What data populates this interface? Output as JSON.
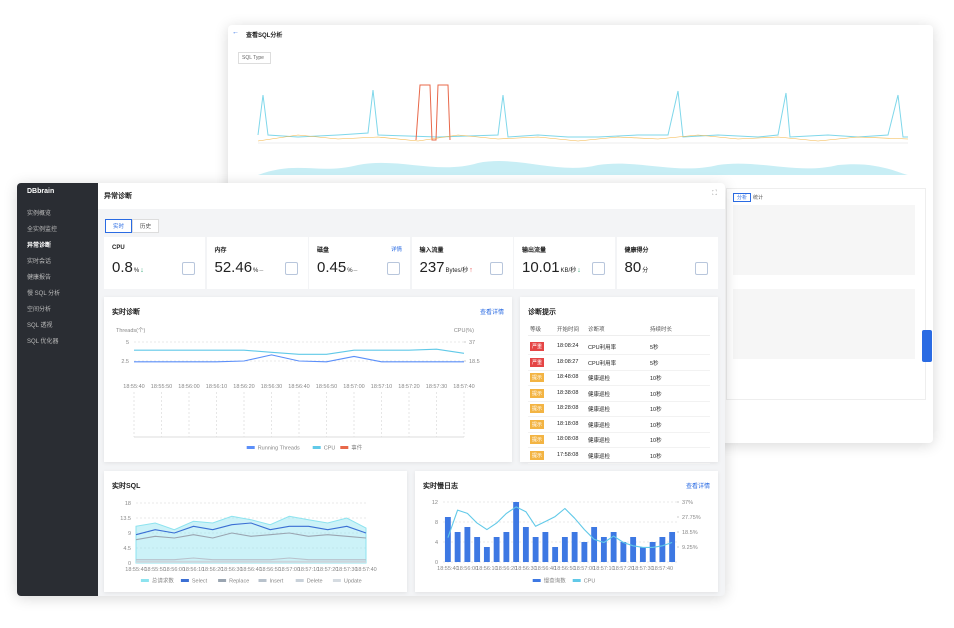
{
  "back_window": {
    "title": "查看SQL分析",
    "dropdown": "SQL Type",
    "tabs": [
      "分析",
      "统计"
    ]
  },
  "sidebar": {
    "brand": "DBbrain",
    "menu": [
      "实例概览",
      "全实例监控",
      "异常诊断",
      "实时会话",
      "健康报告",
      "慢 SQL 分析",
      "空间分析",
      "SQL 透视",
      "SQL 优化器"
    ],
    "active": 2
  },
  "page": {
    "title": "异常诊断",
    "tabs": [
      "实时",
      "历史"
    ],
    "active_tab": 0
  },
  "metrics": [
    {
      "label": "CPU",
      "value": 0.8,
      "unit": "%",
      "trend": "↓",
      "trend_color": "#2ba471"
    },
    {
      "label": "内存",
      "value": 52.46,
      "unit": "%",
      "trend": "–",
      "trend_color": "#888888"
    },
    {
      "label": "磁盘",
      "value": 0.45,
      "unit": "%",
      "trend": "–",
      "trend_color": "#888888",
      "link": "详情"
    },
    {
      "label": "输入流量",
      "value": 237,
      "unit": "Bytes/秒",
      "trend": "↑",
      "trend_color": "#e54545"
    },
    {
      "label": "输出流量",
      "value": 10.01,
      "unit": "KB/秒",
      "trend": "↓",
      "trend_color": "#2ba471"
    },
    {
      "label": "健康得分",
      "value": 80,
      "unit": "分"
    }
  ],
  "diagnosis_chart": {
    "type": "line",
    "title": "实时诊断",
    "link": "查看详情",
    "ylabel": "Threads(个)",
    "y2label": "CPU(%)",
    "categories": [
      "18:55:40",
      "18:55:50",
      "18:56:00",
      "18:56:10",
      "18:56:20",
      "18:56:30",
      "18:56:40",
      "18:56:50",
      "18:57:00",
      "18:57:10",
      "18:57:20",
      "18:57:30",
      "18:57:40"
    ],
    "ylim": [
      0,
      5
    ],
    "yticks": [
      2.5,
      5
    ],
    "y2lim": [
      0,
      37
    ],
    "y2ticks": [
      18.5,
      37
    ],
    "series": [
      {
        "name": "Running Threads",
        "type": "line",
        "color": "#5b8ff9",
        "values": [
          2.4,
          2.4,
          2.4,
          2.4,
          2.5,
          3.3,
          2.5,
          2.4,
          3.1,
          2.4,
          2.4,
          2.4,
          2.4
        ]
      },
      {
        "name": "CPU",
        "type": "line",
        "color": "#61c9e8",
        "axis": "y2",
        "values": [
          29,
          29,
          29,
          29,
          29,
          27,
          25,
          25,
          29,
          29,
          29,
          30,
          26
        ]
      }
    ],
    "legend_extra": [
      {
        "name": "事件",
        "color": "#e8684a"
      }
    ]
  },
  "tips": {
    "title": "诊断提示",
    "columns": [
      "等级",
      "开始时间",
      "诊断项",
      "持续时长"
    ],
    "rows": [
      {
        "level": "严重",
        "color": "#e54545",
        "start": "18:08:24",
        "item": "CPU利用率",
        "duration": "5秒"
      },
      {
        "level": "严重",
        "color": "#e54545",
        "start": "18:08:27",
        "item": "CPU利用率",
        "duration": "5秒"
      },
      {
        "level": "提示",
        "color": "#f3b443",
        "start": "18:48:08",
        "item": "健康巡检",
        "duration": "10秒"
      },
      {
        "level": "提示",
        "color": "#f3b443",
        "start": "18:38:08",
        "item": "健康巡检",
        "duration": "10秒"
      },
      {
        "level": "提示",
        "color": "#f3b443",
        "start": "18:28:08",
        "item": "健康巡检",
        "duration": "10秒"
      },
      {
        "level": "提示",
        "color": "#f3b443",
        "start": "18:18:08",
        "item": "健康巡检",
        "duration": "10秒"
      },
      {
        "level": "提示",
        "color": "#f3b443",
        "start": "18:08:08",
        "item": "健康巡检",
        "duration": "10秒"
      },
      {
        "level": "提示",
        "color": "#f3b443",
        "start": "17:58:08",
        "item": "健康巡检",
        "duration": "10秒"
      }
    ]
  },
  "sql_chart": {
    "type": "line",
    "title": "实时SQL",
    "categories": [
      "18:55:40",
      "18:55:50",
      "18:56:00",
      "18:56:10",
      "18:56:20",
      "18:56:30",
      "18:56:40",
      "18:56:50",
      "18:57:00",
      "18:57:10",
      "18:57:20",
      "18:57:30",
      "18:57:40"
    ],
    "ylim": [
      0,
      18
    ],
    "yticks": [
      0,
      4.5,
      9,
      13.5,
      18
    ],
    "series": [
      {
        "name": "总请求数",
        "type": "area",
        "color": "#8de3ef",
        "values": [
          11,
          12,
          10,
          12.5,
          12,
          14,
          13,
          11.5,
          14,
          13,
          12,
          13.5,
          10.5
        ]
      },
      {
        "name": "Select",
        "type": "line",
        "color": "#3b6fd4",
        "values": [
          8.5,
          10,
          9,
          11,
          10,
          11.5,
          12,
          10,
          11,
          11,
          10,
          11,
          9
        ]
      },
      {
        "name": "Replace",
        "type": "line",
        "color": "#9aa5b1",
        "values": [
          7,
          8,
          7.5,
          8.5,
          7.5,
          9,
          8,
          8.5,
          9,
          8,
          8.5,
          8,
          7.5
        ]
      },
      {
        "name": "Insert",
        "type": "line",
        "color": "#b8c2cc",
        "values": [
          1,
          1,
          1,
          1.5,
          1,
          1,
          1,
          1,
          1.5,
          1,
          1,
          1,
          1
        ]
      },
      {
        "name": "Delete",
        "type": "line",
        "color": "#c9d1d9",
        "values": [
          0.5,
          0.5,
          0.5,
          0.5,
          0.5,
          0.5,
          0.5,
          0.5,
          0.5,
          0.5,
          0.5,
          0.5,
          0.5
        ]
      },
      {
        "name": "Update",
        "type": "line",
        "color": "#d5dbe1",
        "values": [
          0.2,
          0.2,
          0.2,
          0.2,
          0.2,
          0.2,
          0.2,
          0.2,
          0.2,
          0.2,
          0.2,
          0.2,
          0.2
        ]
      }
    ]
  },
  "slow_chart": {
    "type": "bar",
    "title": "实时慢日志",
    "link": "查看详情",
    "categories": [
      "18:55:40",
      null,
      "18:56:00",
      null,
      "18:56:10",
      null,
      "18:56:20",
      null,
      "18:56:30",
      null,
      "18:56:40",
      null,
      "18:56:50",
      null,
      "18:57:00",
      null,
      "18:57:10",
      null,
      "18:57:20",
      null,
      "18:57:30",
      null,
      "18:57:40",
      null
    ],
    "ylim": [
      0,
      12
    ],
    "yticks": [
      0,
      4,
      8,
      12
    ],
    "y2lim": [
      0,
      37
    ],
    "y2ticks": [
      {
        "value": 9.25,
        "label": "9.25%"
      },
      {
        "value": 18.5,
        "label": "18.5%"
      },
      {
        "value": 27.75,
        "label": "27.75%"
      },
      {
        "value": 37,
        "label": "37%"
      }
    ],
    "series": [
      {
        "name": "慢查询数",
        "type": "bar",
        "color": "#3d78e3",
        "values": [
          9,
          6,
          7,
          5,
          3,
          5,
          6,
          12,
          7,
          5,
          6,
          3,
          5,
          6,
          4,
          7,
          5,
          6,
          4,
          5,
          3,
          4,
          5,
          6
        ]
      },
      {
        "name": "CPU",
        "type": "line",
        "color": "#61c9e8",
        "axis": "y2",
        "values": [
          15,
          32,
          30,
          24,
          20,
          24,
          30,
          34,
          31,
          22,
          25,
          28,
          33,
          27,
          20,
          14,
          12,
          16,
          12,
          10,
          9,
          9,
          10,
          12
        ]
      }
    ]
  }
}
